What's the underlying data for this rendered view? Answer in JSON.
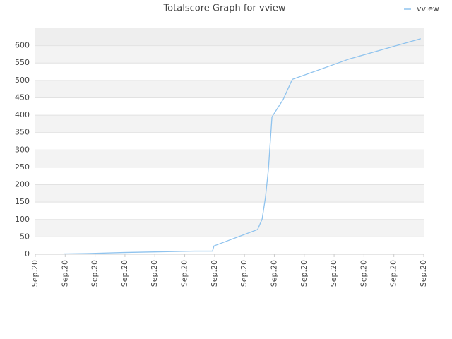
{
  "chart_data": {
    "type": "line",
    "title": "Totalscore Graph for vview",
    "x": [
      0.95,
      1.7,
      2.95,
      4.14,
      5.32,
      5.93,
      5.98,
      7.44,
      7.59,
      7.7,
      7.8,
      7.92,
      8.3,
      8.6,
      10.52,
      12.9
    ],
    "series": [
      {
        "name": "vview",
        "color": "#8fc3ee",
        "values": [
          1,
          2,
          5,
          7,
          9,
          9,
          24,
          71,
          101,
          162,
          243,
          395,
          446,
          503,
          562,
          620
        ]
      }
    ],
    "xlim": [
      0,
      13
    ],
    "xticks": [
      {
        "value": 0,
        "label": "Sep.20"
      },
      {
        "value": 1,
        "label": "Sep.20"
      },
      {
        "value": 2,
        "label": "Sep.20"
      },
      {
        "value": 3,
        "label": "Sep.20"
      },
      {
        "value": 4,
        "label": "Sep.20"
      },
      {
        "value": 5,
        "label": "Sep.20"
      },
      {
        "value": 6,
        "label": "Sep.20"
      },
      {
        "value": 7,
        "label": "Sep.20"
      },
      {
        "value": 8,
        "label": "Sep.20"
      },
      {
        "value": 9,
        "label": "Sep.20"
      },
      {
        "value": 10,
        "label": "Sep.20"
      },
      {
        "value": 11,
        "label": "Sep.20"
      },
      {
        "value": 12,
        "label": "Sep.20"
      },
      {
        "value": 13,
        "label": "Sep.20"
      }
    ],
    "ylim": [
      0,
      650
    ],
    "yticks": [
      0,
      50,
      100,
      150,
      200,
      250,
      300,
      350,
      400,
      450,
      500,
      550,
      600
    ],
    "grid": true,
    "legend": "top-right"
  }
}
